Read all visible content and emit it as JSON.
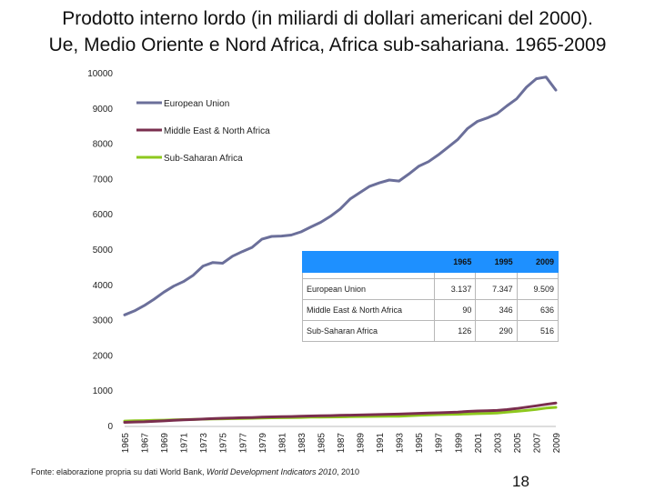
{
  "title_line1": "Prodotto interno lordo (in miliardi di dollari americani del 2000).",
  "title_line2": "Ue, Medio Oriente e Nord Africa, Africa sub-sahariana. 1965-2009",
  "source_prefix": "Fonte: elaborazione propria su dati World Bank, ",
  "source_italic": "World Development Indicators 2010",
  "source_suffix": ", 2010",
  "page_number": "18",
  "table": {
    "headers": [
      "",
      "1965",
      "1995",
      "2009"
    ],
    "rows": [
      {
        "label": "European Union",
        "v1965": "3.137",
        "v1995": "7.347",
        "v2009": "9.509"
      },
      {
        "label": "Middle East & North Africa",
        "v1965": "90",
        "v1995": "346",
        "v2009": "636"
      },
      {
        "label": "Sub-Saharan Africa",
        "v1965": "126",
        "v1995": "290",
        "v2009": "516"
      }
    ]
  },
  "chart_data": {
    "type": "line",
    "title": "",
    "xlabel": "",
    "ylabel": "",
    "ylim": [
      0,
      10000
    ],
    "yticks": [
      0,
      1000,
      2000,
      3000,
      4000,
      5000,
      6000,
      7000,
      8000,
      9000,
      10000
    ],
    "ytick_labels": [
      "0",
      "1000",
      "2000",
      "3000",
      "4000",
      "5000",
      "6000",
      "7000",
      "8000",
      "9000",
      "10000"
    ],
    "x": [
      1965,
      1966,
      1967,
      1968,
      1969,
      1970,
      1971,
      1972,
      1973,
      1974,
      1975,
      1976,
      1977,
      1978,
      1979,
      1980,
      1981,
      1982,
      1983,
      1984,
      1985,
      1986,
      1987,
      1988,
      1989,
      1990,
      1991,
      1992,
      1993,
      1994,
      1995,
      1996,
      1997,
      1998,
      1999,
      2000,
      2001,
      2002,
      2003,
      2004,
      2005,
      2006,
      2007,
      2008,
      2009
    ],
    "xtick_labels": [
      "1965",
      "1967",
      "1969",
      "1971",
      "1973",
      "1975",
      "1977",
      "1979",
      "1981",
      "1983",
      "1985",
      "1987",
      "1989",
      "1991",
      "1993",
      "1995",
      "1997",
      "1999",
      "2001",
      "2003",
      "2005",
      "2007",
      "2009"
    ],
    "legend_position": "top-left",
    "series": [
      {
        "name": "European Union",
        "color": "#6b6f9a",
        "values": [
          3137,
          3250,
          3400,
          3580,
          3780,
          3950,
          4080,
          4260,
          4520,
          4620,
          4600,
          4800,
          4930,
          5050,
          5280,
          5360,
          5370,
          5400,
          5490,
          5630,
          5760,
          5930,
          6140,
          6420,
          6600,
          6780,
          6880,
          6960,
          6930,
          7130,
          7347,
          7480,
          7670,
          7890,
          8110,
          8420,
          8620,
          8720,
          8840,
          9060,
          9260,
          9590,
          9830,
          9880,
          9509
        ]
      },
      {
        "name": "Middle East & North Africa",
        "color": "#7a2e4e",
        "values": [
          90,
          100,
          105,
          118,
          132,
          148,
          160,
          170,
          182,
          196,
          205,
          215,
          222,
          228,
          238,
          245,
          250,
          255,
          262,
          270,
          276,
          282,
          288,
          293,
          300,
          307,
          313,
          320,
          326,
          336,
          346,
          355,
          362,
          372,
          382,
          400,
          412,
          418,
          428,
          452,
          482,
          520,
          560,
          600,
          636
        ]
      },
      {
        "name": "Sub-Saharan Africa",
        "color": "#8ec81e",
        "values": [
          126,
          135,
          140,
          146,
          152,
          160,
          167,
          173,
          180,
          186,
          190,
          196,
          202,
          206,
          212,
          218,
          222,
          226,
          230,
          236,
          238,
          242,
          246,
          250,
          254,
          258,
          260,
          262,
          266,
          278,
          290,
          300,
          308,
          316,
          320,
          330,
          338,
          346,
          356,
          378,
          402,
          428,
          460,
          494,
          516
        ]
      }
    ]
  }
}
